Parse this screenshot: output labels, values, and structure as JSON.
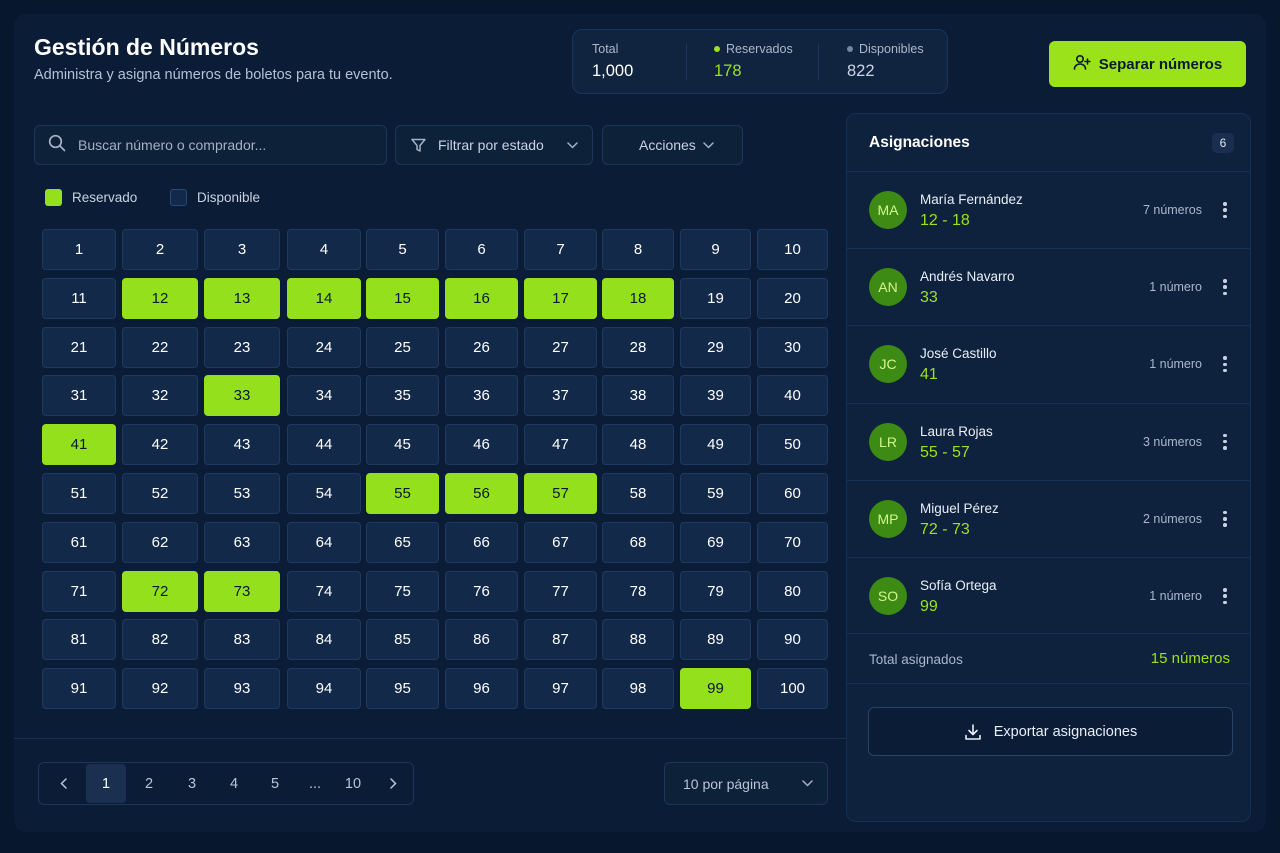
{
  "header": {
    "title": "Gestión de Números",
    "subtitle": "Administra y asigna números de boletos para tu evento."
  },
  "stats": {
    "total_label": "Total",
    "total_value": "1,000",
    "reserved_label": "Reservados",
    "reserved_value": "178",
    "available_label": "Disponibles",
    "available_value": "822"
  },
  "cta": {
    "label": "Separar números",
    "icon": "user-plus-icon"
  },
  "toolbar": {
    "search_placeholder": "Buscar número o comprador...",
    "filter_label": "Filtrar por estado",
    "actions_label": "Acciones"
  },
  "legend": {
    "reserved": "Reservado",
    "available": "Disponible"
  },
  "grid": {
    "numbers": [
      "1",
      "2",
      "3",
      "4",
      "5",
      "6",
      "7",
      "8",
      "9",
      "10",
      "11",
      "12",
      "13",
      "14",
      "15",
      "16",
      "17",
      "18",
      "19",
      "20",
      "21",
      "22",
      "23",
      "24",
      "25",
      "26",
      "27",
      "28",
      "29",
      "30",
      "31",
      "32",
      "33",
      "34",
      "35",
      "36",
      "37",
      "38",
      "39",
      "40",
      "41",
      "42",
      "43",
      "44",
      "45",
      "46",
      "47",
      "48",
      "49",
      "50",
      "51",
      "52",
      "53",
      "54",
      "55",
      "56",
      "57",
      "58",
      "59",
      "60",
      "61",
      "62",
      "63",
      "64",
      "65",
      "66",
      "67",
      "68",
      "69",
      "70",
      "71",
      "72",
      "73",
      "74",
      "75",
      "76",
      "77",
      "78",
      "79",
      "80",
      "81",
      "82",
      "83",
      "84",
      "85",
      "86",
      "87",
      "88",
      "89",
      "90",
      "91",
      "92",
      "93",
      "94",
      "95",
      "96",
      "97",
      "98",
      "99",
      "100"
    ],
    "reserved": [
      12,
      13,
      14,
      15,
      16,
      17,
      18,
      33,
      41,
      55,
      56,
      57,
      72,
      73,
      99
    ]
  },
  "pagination": {
    "pages": [
      "1",
      "2",
      "3",
      "4",
      "5",
      "...",
      "10"
    ],
    "current": "1",
    "per_page": "10 por página"
  },
  "panel": {
    "title": "Asignaciones",
    "count": "6",
    "items": [
      {
        "initials": "MA",
        "name": "María Fernández",
        "range": "12 - 18",
        "count": "7 números"
      },
      {
        "initials": "AN",
        "name": "Andrés Navarro",
        "range": "33",
        "count": "1 número"
      },
      {
        "initials": "JC",
        "name": "José Castillo",
        "range": "41",
        "count": "1 número"
      },
      {
        "initials": "LR",
        "name": "Laura Rojas",
        "range": "55 - 57",
        "count": "3 números"
      },
      {
        "initials": "MP",
        "name": "Miguel Pérez",
        "range": "72 - 73",
        "count": "2 números"
      },
      {
        "initials": "SO",
        "name": "Sofía Ortega",
        "range": "99",
        "count": "1 número"
      }
    ],
    "total_label": "Total asignados",
    "total_value": "15 números",
    "export_label": "Exportar asignaciones"
  },
  "colors": {
    "accent": "#9be21a",
    "background": "#07172d",
    "cell": "#12294a",
    "available_dot": "#6f86a6"
  }
}
